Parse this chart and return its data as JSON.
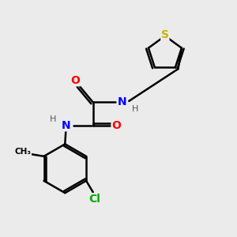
{
  "background_color": "#ebebeb",
  "bond_color": "#000000",
  "atom_colors": {
    "S": "#c8b400",
    "N": "#0000ff",
    "O": "#ff0000",
    "Cl": "#00aa00",
    "C": "#000000",
    "H": "#555555"
  },
  "figsize": [
    3.0,
    3.0
  ],
  "dpi": 100
}
